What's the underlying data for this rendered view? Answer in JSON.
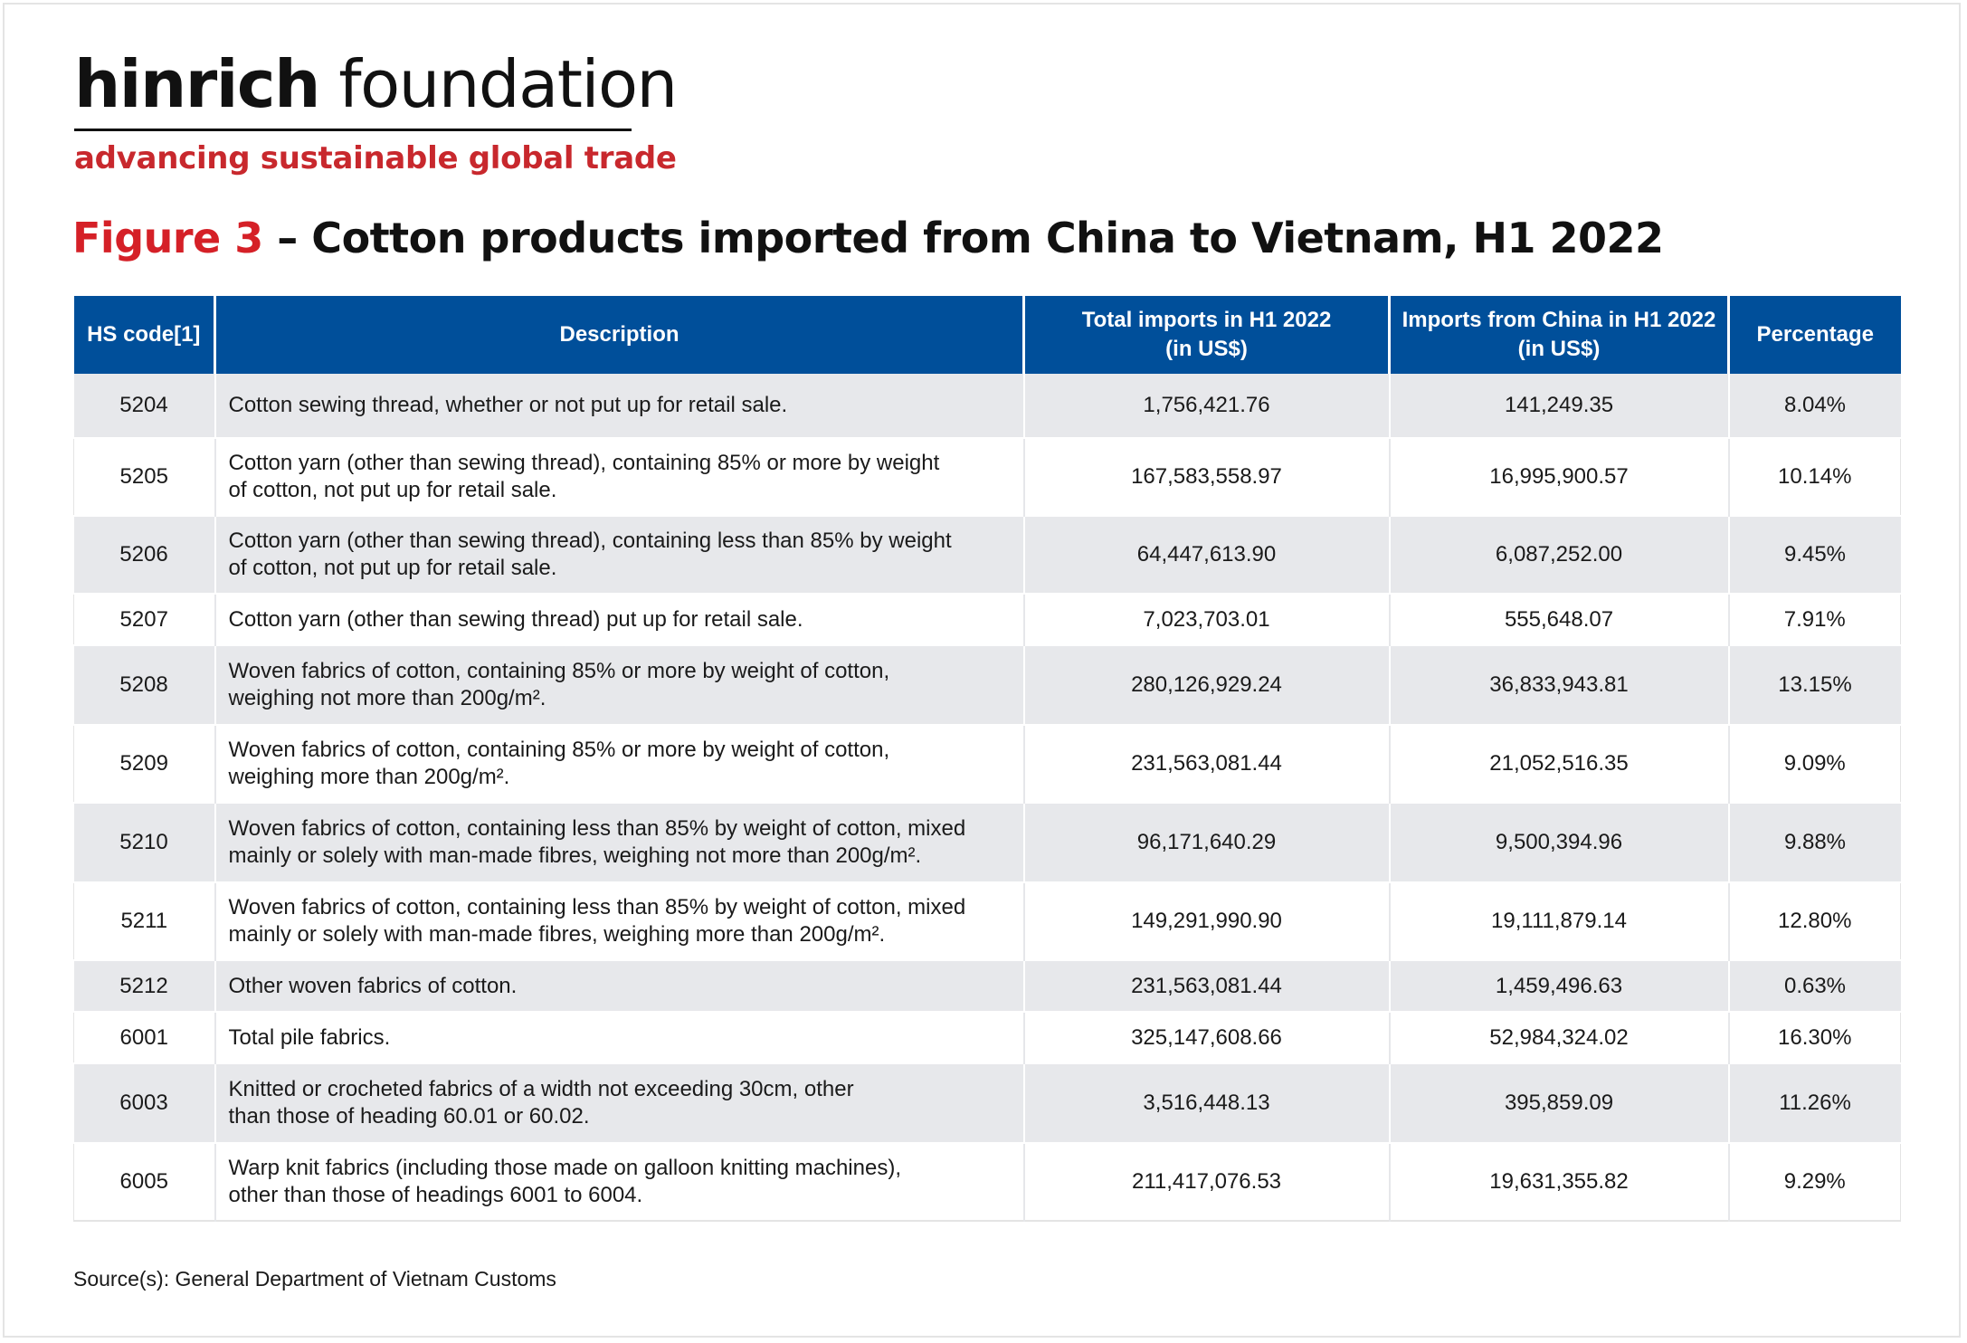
{
  "brand": {
    "logo_bold": "hinrich",
    "logo_light": "foundation",
    "tagline": "advancing sustainable global trade",
    "accent_color": "#d52027",
    "header_color": "#004f9a"
  },
  "title": {
    "figure_label": "Figure 3",
    "text": "– Cotton products imported from China to Vietnam, H1 2022"
  },
  "chart_data": {
    "type": "table",
    "title": "Figure 3 – Cotton products imported from China to Vietnam, H1 2022",
    "columns": [
      "HS code[1]",
      "Description",
      "Total imports in H1 2022 (in US$)",
      "Imports from China in H1 2022 (in US$)",
      "Percentage"
    ],
    "headers": {
      "hs": "HS code[1]",
      "desc": "Description",
      "total_l1": "Total imports in H1 2022",
      "total_l2": "(in US$)",
      "china_l1": "Imports from China in H1 2022",
      "china_l2": "(in US$)",
      "pct": "Percentage"
    },
    "rows": [
      {
        "hs": "5204",
        "desc_1": "Cotton sewing thread, whether or not put up for retail sale.",
        "desc_2": "",
        "total": "1,756,421.76",
        "china": "141,249.35",
        "pct": "8.04%"
      },
      {
        "hs": "5205",
        "desc_1": "Cotton yarn (other than sewing thread), containing 85% or more by weight",
        "desc_2": "of cotton, not put up for retail sale.",
        "total": "167,583,558.97",
        "china": "16,995,900.57",
        "pct": "10.14%"
      },
      {
        "hs": "5206",
        "desc_1": "Cotton yarn (other than sewing thread), containing less than 85% by weight",
        "desc_2": "of cotton, not put up for retail sale.",
        "total": "64,447,613.90",
        "china": "6,087,252.00",
        "pct": "9.45%"
      },
      {
        "hs": "5207",
        "desc_1": "Cotton yarn (other than sewing thread) put up for retail sale.",
        "desc_2": "",
        "total": "7,023,703.01",
        "china": "555,648.07",
        "pct": "7.91%"
      },
      {
        "hs": "5208",
        "desc_1": "Woven fabrics of cotton, containing 85% or more by weight of cotton,",
        "desc_2": "weighing not more than 200g/m².",
        "total": "280,126,929.24",
        "china": "36,833,943.81",
        "pct": "13.15%"
      },
      {
        "hs": "5209",
        "desc_1": "Woven fabrics of cotton, containing 85% or more by weight of cotton,",
        "desc_2": "weighing more than 200g/m².",
        "total": "231,563,081.44",
        "china": "21,052,516.35",
        "pct": "9.09%"
      },
      {
        "hs": "5210",
        "desc_1": "Woven fabrics of cotton, containing less than 85% by weight of cotton, mixed",
        "desc_2": "mainly or solely with man-made fibres, weighing not more than 200g/m².",
        "total": "96,171,640.29",
        "china": "9,500,394.96",
        "pct": "9.88%"
      },
      {
        "hs": "5211",
        "desc_1": "Woven fabrics of cotton, containing less than 85% by weight of cotton, mixed",
        "desc_2": "mainly or solely with man-made fibres, weighing more than 200g/m².",
        "total": "149,291,990.90",
        "china": "19,111,879.14",
        "pct": "12.80%"
      },
      {
        "hs": "5212",
        "desc_1": "Other woven fabrics of cotton.",
        "desc_2": "",
        "total": "231,563,081.44",
        "china": "1,459,496.63",
        "pct": "0.63%"
      },
      {
        "hs": "6001",
        "desc_1": "Total pile fabrics.",
        "desc_2": "",
        "total": "325,147,608.66",
        "china": "52,984,324.02",
        "pct": "16.30%"
      },
      {
        "hs": "6003",
        "desc_1": "Knitted or crocheted fabrics of a width not exceeding 30cm, other",
        "desc_2": "than those of heading 60.01 or 60.02.",
        "total": "3,516,448.13",
        "china": "395,859.09",
        "pct": "11.26%"
      },
      {
        "hs": "6005",
        "desc_1": "Warp knit fabrics (including those made on galloon knitting machines),",
        "desc_2": "other than those of headings 6001 to 6004.",
        "total": "211,417,076.53",
        "china": "19,631,355.82",
        "pct": "9.29%"
      }
    ]
  },
  "source": "Source(s): General Department of Vietnam Customs"
}
